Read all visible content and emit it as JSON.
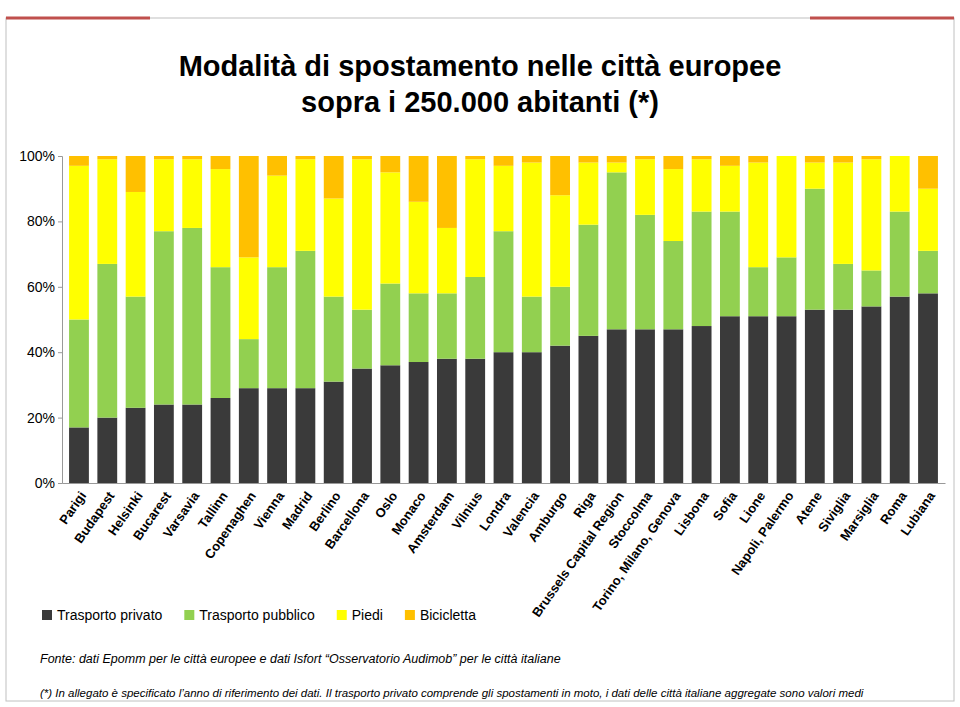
{
  "chart_data": {
    "type": "bar",
    "stacked": true,
    "title": [
      "Modalità di spostamento nelle città europee",
      "sopra i 250.000 abitanti (*)"
    ],
    "annotations": [
      "Fonte: dati Epomm per le città europee e dati Isfort “Osservatorio Audimob” per le città italiane",
      "(*) In allegato è specificato l’anno di riferimento dei dati. Il trasporto privato comprende gli spostamenti in moto, i dati delle città italiane aggregate sono valori medi"
    ],
    "categories": [
      "Parigi",
      "Budapest",
      "Helsinki",
      "Bucarest",
      "Varsavia",
      "Tallinn",
      "Copenaghen",
      "Vienna",
      "Madrid",
      "Berlino",
      "Barcellona",
      "Oslo",
      "Monaco",
      "Amsterdam",
      "Vilnius",
      "Londra",
      "Valencia",
      "Amburgo",
      "Riga",
      "Brussels Capital Region",
      "Stoccolma",
      "Torino, Milano, Genova",
      "Lisbona",
      "Sofia",
      "Lione",
      "Napoli, Palermo",
      "Atene",
      "Siviglia",
      "Marsiglia",
      "Roma",
      "Lubiana"
    ],
    "series": [
      {
        "name": "Trasporto privato",
        "color": "#3a3a3a",
        "values": [
          17,
          20,
          23,
          24,
          24,
          26,
          29,
          29,
          29,
          31,
          35,
          36,
          37,
          38,
          38,
          40,
          40,
          42,
          45,
          47,
          47,
          47,
          48,
          51,
          51,
          51,
          53,
          53,
          54,
          57,
          58
        ]
      },
      {
        "name": "Trasporto pubblico",
        "color": "#92d050",
        "values": [
          33,
          47,
          34,
          53,
          54,
          40,
          15,
          37,
          42,
          26,
          18,
          25,
          21,
          20,
          25,
          37,
          17,
          18,
          34,
          48,
          35,
          27,
          35,
          32,
          15,
          18,
          37,
          14,
          11,
          26,
          13
        ]
      },
      {
        "name": "Piedi",
        "color": "#ffff00",
        "values": [
          47,
          32,
          32,
          22,
          21,
          30,
          25,
          28,
          28,
          30,
          46,
          34,
          28,
          20,
          36,
          20,
          41,
          28,
          19,
          3,
          17,
          22,
          16,
          14,
          32,
          31,
          8,
          31,
          34,
          17,
          19
        ]
      },
      {
        "name": "Bicicletta",
        "color": "#ffc000",
        "values": [
          3,
          1,
          11,
          1,
          1,
          4,
          31,
          6,
          1,
          13,
          1,
          5,
          14,
          22,
          1,
          3,
          2,
          12,
          2,
          2,
          1,
          4,
          1,
          3,
          2,
          0,
          2,
          2,
          1,
          0,
          10
        ]
      }
    ],
    "ylim": [
      0,
      100
    ],
    "yticks": [
      {
        "value": 0,
        "label": "0%"
      },
      {
        "value": 20,
        "label": "20%"
      },
      {
        "value": 40,
        "label": "40%"
      },
      {
        "value": 60,
        "label": "60%"
      },
      {
        "value": 80,
        "label": "80%"
      },
      {
        "value": 100,
        "label": "100%"
      }
    ],
    "grid": false,
    "legend": "bottom-left"
  }
}
